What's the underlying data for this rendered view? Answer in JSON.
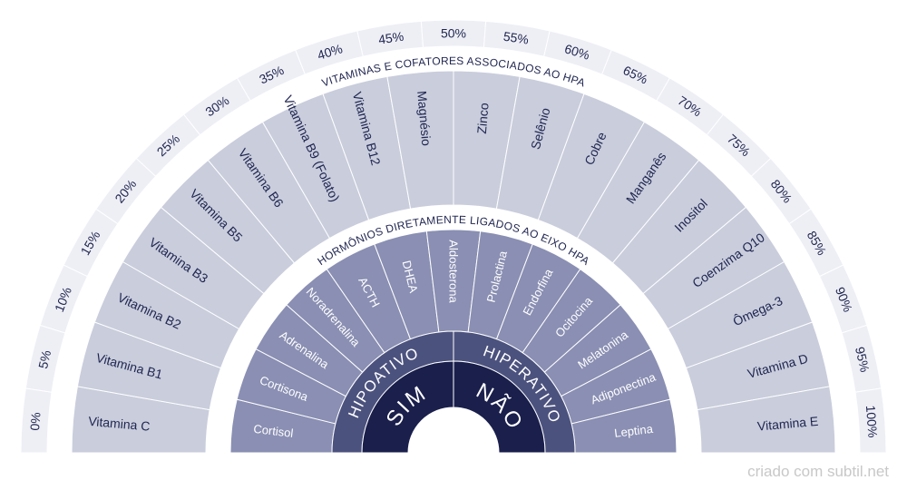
{
  "colors": {
    "percent_band": "#eeeff5",
    "vitamins": "#c9cddc",
    "hormones": "#8a8fb3",
    "state": "#4c527e",
    "answer": "#1a1f4c",
    "dark_text": "#1f2550",
    "light_text": "#ffffff"
  },
  "percent_ticks": [
    "0%",
    "5%",
    "10%",
    "15%",
    "20%",
    "25%",
    "30%",
    "35%",
    "40%",
    "45%",
    "50%",
    "55%",
    "60%",
    "65%",
    "70%",
    "75%",
    "80%",
    "85%",
    "90%",
    "95%",
    "100%"
  ],
  "vitamins_title": "VITAMINAS E COFATORES ASSOCIADOS AO HPA",
  "vitamins": [
    "Vitamina C",
    "Vitamina B1",
    "Vitamina B2",
    "Vitamina B3",
    "Vitamina B5",
    "Vitamina B6",
    "Vitamina B9 (Folato)",
    "Vitamina B12",
    "Magnésio",
    "Zinco",
    "Selênio",
    "Cobre",
    "Manganês",
    "Inositol",
    "Coenzima Q10",
    "Ômega-3",
    "Vitamina D",
    "Vitamina E"
  ],
  "hormones_title": "HORMÔNIOS DIRETAMENTE LIGADOS AO EIXO HPA",
  "hormones": [
    "Cortisol",
    "Cortisona",
    "Adrenalina",
    "Noradrenalina",
    "ACTH",
    "DHEA",
    "Aldosterona",
    "Prolactina",
    "Endorfina",
    "Ocitocina",
    "Melatonina",
    "Adiponectina",
    "Leptina"
  ],
  "states": [
    "HIPOATIVO",
    "HIPERATIVO"
  ],
  "answers": [
    "SIM",
    "NÃO"
  ],
  "footer": "criado com subtil.net"
}
